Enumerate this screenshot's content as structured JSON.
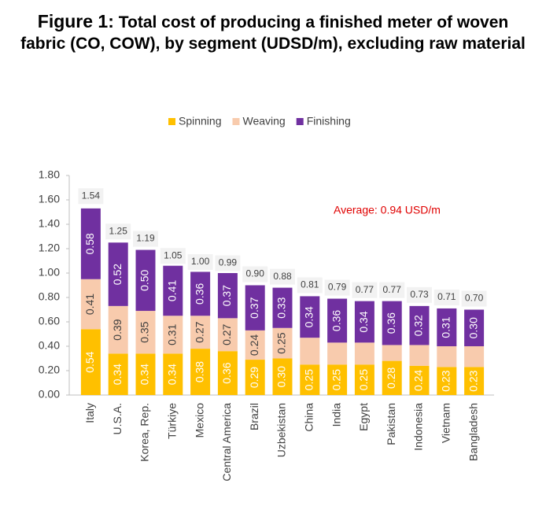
{
  "chart_data": {
    "type": "stacked_bar",
    "figure_label": "Figure 1:",
    "title": "Total cost of producing a finished meter of woven fabric (CO, COW), by segment (UDSD/m), excluding raw material",
    "annotation": "Average: 0.94 USD/m",
    "categories": [
      "Italy",
      "U.S.A.",
      "Korea, Rep.",
      "Türkiye",
      "Mexico",
      "Central America",
      "Brazil",
      "Uzbekistan",
      "China",
      "India",
      "Egypt",
      "Pakistan",
      "Indonesia",
      "Vietnam",
      "Bangladesh"
    ],
    "series": [
      {
        "name": "Spinning",
        "color": "#ffc000",
        "label_color": "#ffffff",
        "values": [
          0.54,
          0.34,
          0.34,
          0.34,
          0.38,
          0.36,
          0.29,
          0.3,
          0.25,
          0.25,
          0.25,
          0.28,
          0.24,
          0.23,
          0.23
        ],
        "value_labels": [
          "0.54",
          "0.34",
          "0.34",
          "0.34",
          "0.38",
          "0.36",
          "0.29",
          "0.30",
          "0.25",
          "0.25",
          "0.25",
          "0.28",
          "0.24",
          "0.23",
          "0.23"
        ]
      },
      {
        "name": "Weaving",
        "color": "#f8cbad",
        "label_color": "#404040",
        "values": [
          0.41,
          0.39,
          0.35,
          0.31,
          0.27,
          0.27,
          0.24,
          0.25,
          0.22,
          0.18,
          0.18,
          0.13,
          0.17,
          0.17,
          0.17
        ],
        "value_labels": [
          "0.41",
          "0.39",
          "0.35",
          "0.31",
          "0.27",
          "0.27",
          "0.24",
          "0.25",
          null,
          null,
          null,
          null,
          null,
          null,
          null
        ]
      },
      {
        "name": "Finishing",
        "color": "#7030a0",
        "label_color": "#ffffff",
        "values": [
          0.58,
          0.52,
          0.5,
          0.41,
          0.36,
          0.37,
          0.37,
          0.33,
          0.34,
          0.36,
          0.34,
          0.36,
          0.32,
          0.31,
          0.3
        ],
        "value_labels": [
          "0.58",
          "0.52",
          "0.50",
          "0.41",
          "0.36",
          "0.37",
          "0.37",
          "0.33",
          "0.34",
          "0.36",
          "0.34",
          "0.36",
          "0.32",
          "0.31",
          "0.30"
        ]
      }
    ],
    "totals": [
      1.54,
      1.25,
      1.19,
      1.05,
      1.0,
      0.99,
      0.9,
      0.88,
      0.81,
      0.79,
      0.77,
      0.77,
      0.73,
      0.71,
      0.7
    ],
    "total_labels": [
      "1.54",
      "1.25",
      "1.19",
      "1.05",
      "1.00",
      "0.99",
      "0.90",
      "0.88",
      "0.81",
      "0.79",
      "0.77",
      "0.77",
      "0.73",
      "0.71",
      "0.70"
    ],
    "ylim": [
      0,
      1.8
    ],
    "yticks": [
      {
        "value": 0,
        "label": "0.00"
      },
      {
        "value": 0.2,
        "label": "0.20"
      },
      {
        "value": 0.4,
        "label": "0.40"
      },
      {
        "value": 0.6,
        "label": "0.60"
      },
      {
        "value": 0.8,
        "label": "0.80"
      },
      {
        "value": 1.0,
        "label": "1.00"
      },
      {
        "value": 1.2,
        "label": "1.20"
      },
      {
        "value": 1.4,
        "label": "1.40"
      },
      {
        "value": 1.6,
        "label": "1.60"
      },
      {
        "value": 1.8,
        "label": "1.80"
      }
    ],
    "legend": "top"
  }
}
